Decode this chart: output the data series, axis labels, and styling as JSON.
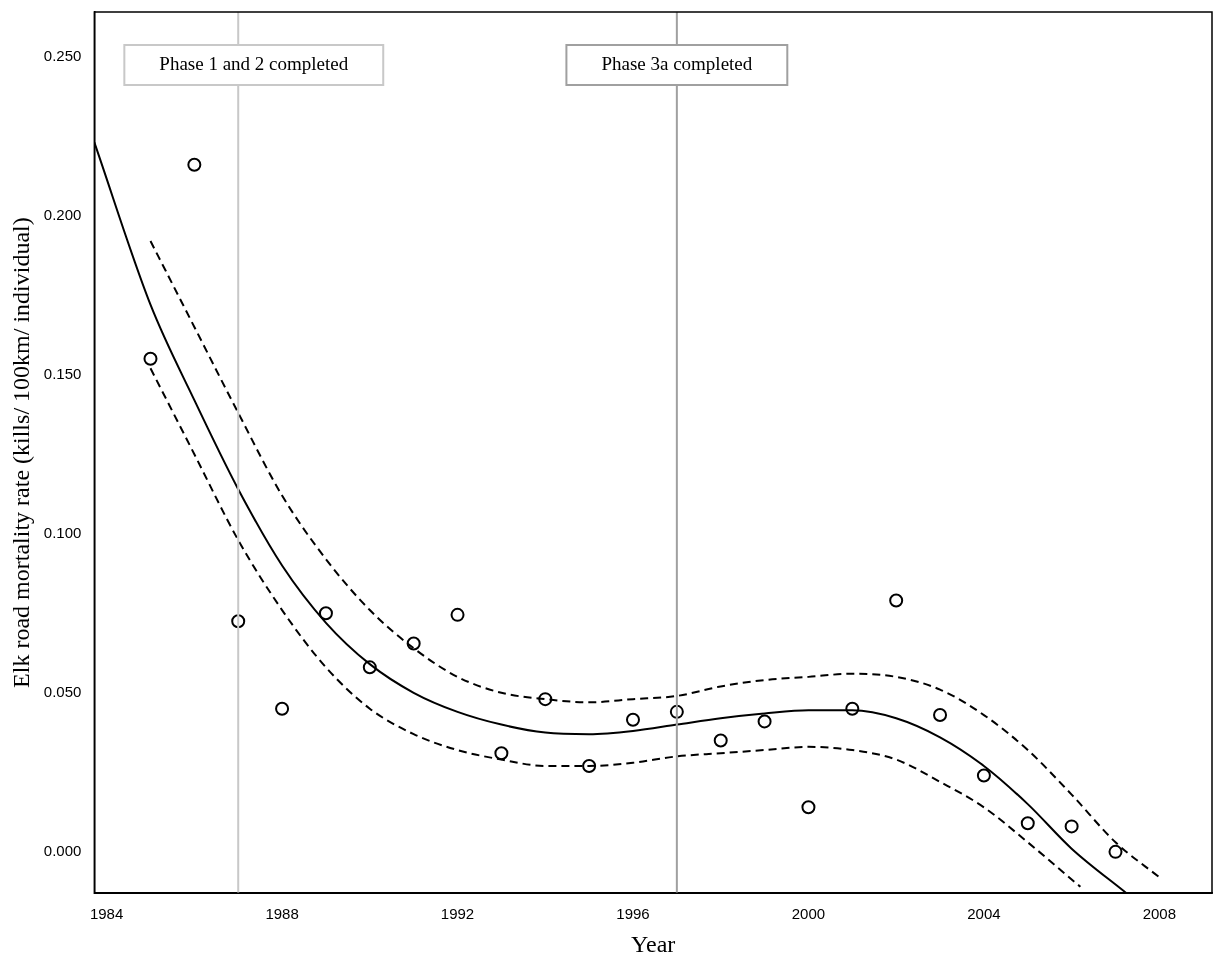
{
  "chart_data": {
    "type": "scatter",
    "xlabel": "Year",
    "ylabel": "Elk road mortality rate (kills/ 100km/ individual)",
    "x": [
      1985,
      1986,
      1987,
      1988,
      1989,
      1990,
      1991,
      1992,
      1993,
      1994,
      1995,
      1996,
      1997,
      1998,
      1999,
      2000,
      2001,
      2002,
      2003,
      2004,
      2005,
      2006,
      2007
    ],
    "series": [
      {
        "color": "#000000",
        "marker": "circle",
        "values": [
          0.155,
          0.216,
          0.0725,
          0.045,
          0.075,
          0.058,
          0.0655,
          0.0745,
          0.031,
          0.048,
          0.027,
          0.0415,
          0.044,
          0.035,
          0.041,
          0.014,
          0.045,
          0.079,
          0.043,
          0.024,
          0.009,
          0.008,
          0.0
        ]
      },
      {
        "type": "line",
        "color": "#000000",
        "marker": "none",
        "line_style": "solid",
        "x": [
          1983.72,
          1985,
          1986,
          1987,
          1988,
          1989,
          1990,
          1991,
          1992,
          1993,
          1994,
          1995,
          1996,
          1997,
          1998,
          1999,
          2000,
          2001,
          2002,
          2003,
          2004,
          2005,
          2006,
          2007.25
        ],
        "values": [
          0.223,
          0.172,
          0.142,
          0.114,
          0.09,
          0.072,
          0.059,
          0.05,
          0.044,
          0.04,
          0.0375,
          0.037,
          0.038,
          0.04,
          0.042,
          0.0435,
          0.0445,
          0.0445,
          0.042,
          0.036,
          0.027,
          0.015,
          0.001,
          -0.013
        ]
      },
      {
        "type": "line",
        "color": "#000000",
        "marker": "none",
        "line_style": "dashed",
        "x": [
          1985,
          1986,
          1987,
          1988,
          1989,
          1990,
          1991,
          1992,
          1993,
          1994,
          1995,
          1996,
          1997,
          1998,
          1999,
          2000,
          2001,
          2002,
          2003,
          2004,
          2005,
          2006,
          2007,
          2008
        ],
        "values": [
          0.192,
          0.165,
          0.138,
          0.112,
          0.092,
          0.076,
          0.064,
          0.055,
          0.05,
          0.048,
          0.047,
          0.048,
          0.049,
          0.052,
          0.054,
          0.055,
          0.056,
          0.055,
          0.051,
          0.043,
          0.032,
          0.018,
          0.003,
          -0.008
        ]
      },
      {
        "type": "line",
        "color": "#000000",
        "marker": "none",
        "line_style": "dashed",
        "x": [
          1985,
          1986,
          1987,
          1988,
          1989,
          1990,
          1991,
          1992,
          1993,
          1994,
          1995,
          1996,
          1997,
          1998,
          1999,
          2000,
          2001,
          2002,
          2003,
          2004,
          2005,
          2006.2
        ],
        "values": [
          0.152,
          0.125,
          0.098,
          0.076,
          0.058,
          0.045,
          0.037,
          0.032,
          0.029,
          0.027,
          0.027,
          0.028,
          0.03,
          0.031,
          0.032,
          0.033,
          0.032,
          0.029,
          0.022,
          0.014,
          0.003,
          -0.011
        ]
      }
    ],
    "xlim": [
      1983.72,
      2009.2
    ],
    "ylim": [
      -0.013,
      0.264
    ],
    "xticks": [
      1984,
      1988,
      1992,
      1996,
      2000,
      2004,
      2008
    ],
    "yticks": [
      {
        "value": 0,
        "label": "0.000"
      },
      {
        "value": 0.05,
        "label": "0.050"
      },
      {
        "value": 0.1,
        "label": "0.100"
      },
      {
        "value": 0.15,
        "label": "0.150"
      },
      {
        "value": 0.2,
        "label": "0.200"
      },
      {
        "value": 0.25,
        "label": "0.250"
      }
    ],
    "ref_lines": [
      {
        "axis": "x",
        "value": 1987,
        "label": "Phase 1 and 2 completed",
        "color": "#c8c8c8"
      },
      {
        "axis": "x",
        "value": 1997,
        "label": "Phase 3a completed",
        "color": "#a0a0a0"
      }
    ],
    "grid": false,
    "legend": false
  }
}
